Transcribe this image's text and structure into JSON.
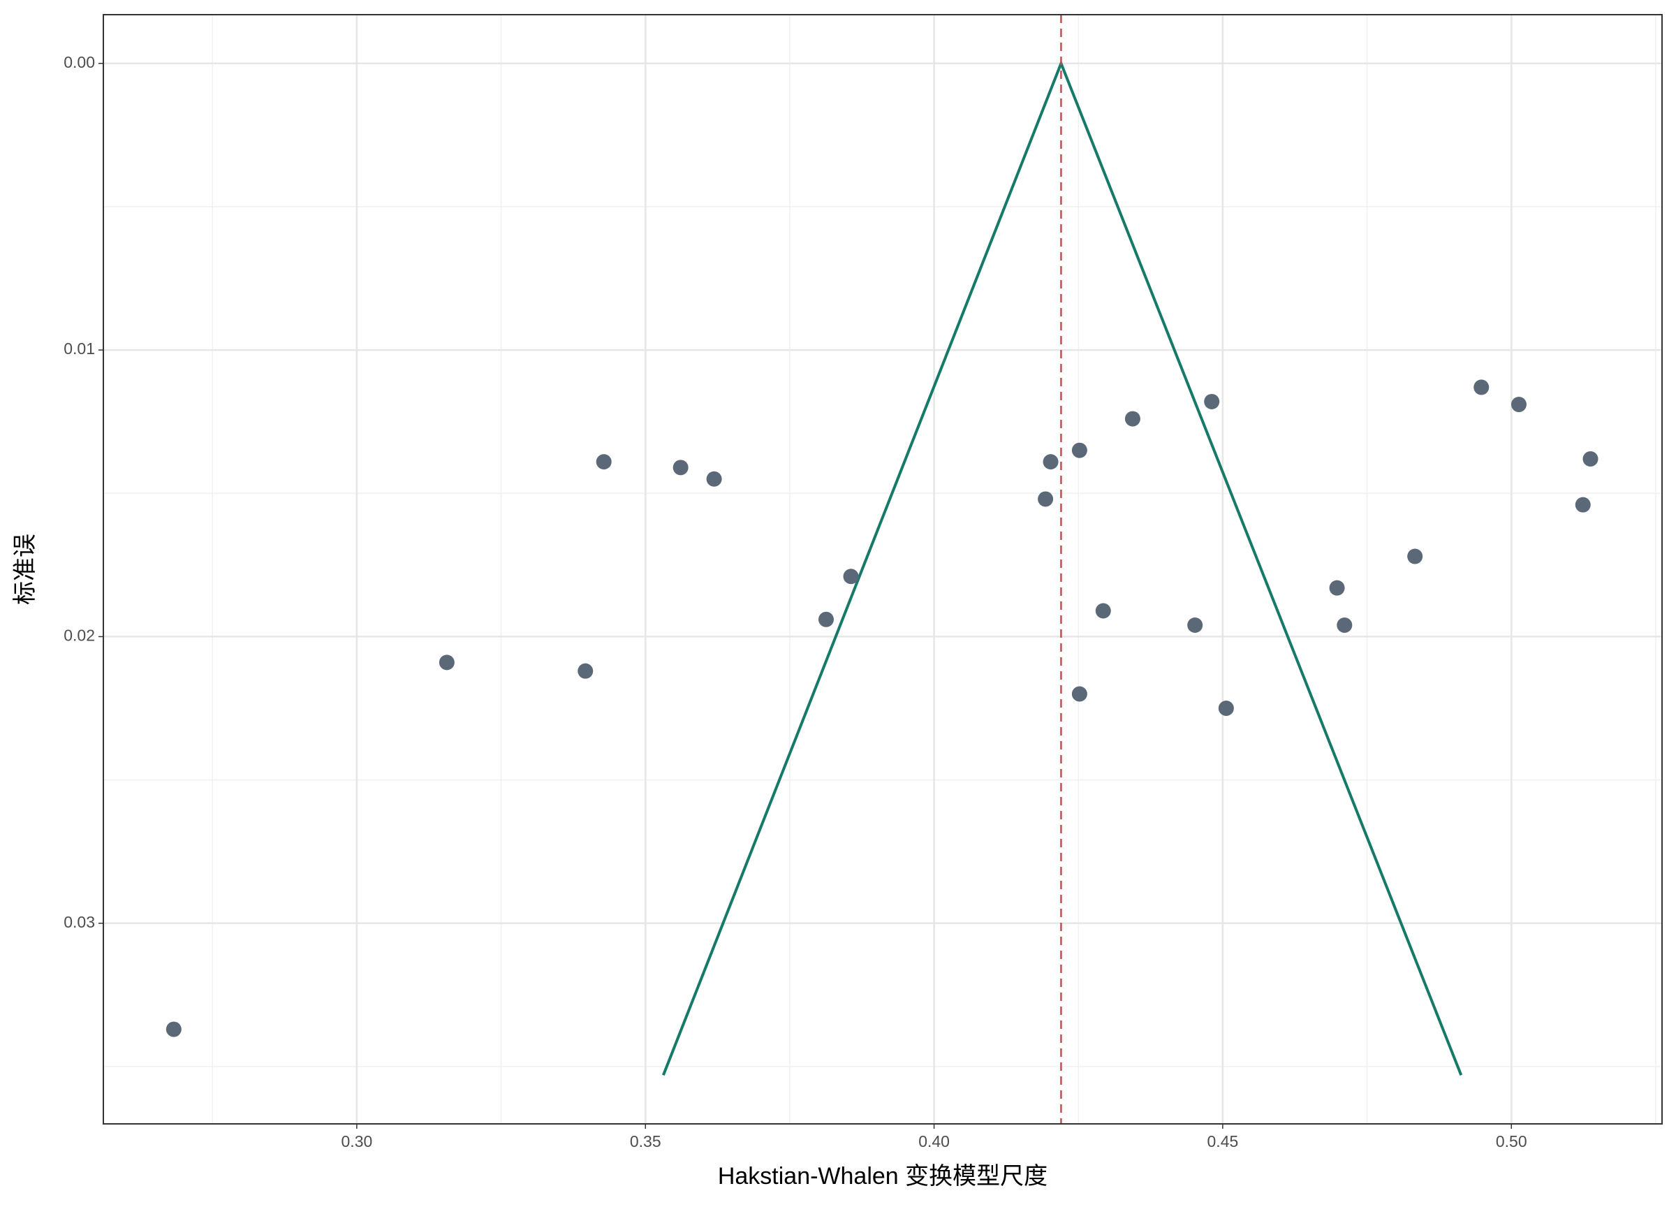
{
  "chart_data": {
    "type": "scatter",
    "xlabel": "Hakstian-Whalen 变换模型尺度",
    "ylabel": "标准误",
    "x": [
      0.2683,
      0.3156,
      0.3396,
      0.3428,
      0.3561,
      0.3619,
      0.3813,
      0.3856,
      0.4193,
      0.4202,
      0.4252,
      0.4252,
      0.4293,
      0.4344,
      0.4452,
      0.4481,
      0.4506,
      0.4698,
      0.4711,
      0.4833,
      0.4948,
      0.5013,
      0.5124,
      0.5137
    ],
    "y": [
      0.0337,
      0.0209,
      0.0212,
      0.0139,
      0.0141,
      0.0145,
      0.0194,
      0.0179,
      0.0152,
      0.0139,
      0.0135,
      0.022,
      0.0191,
      0.0124,
      0.0196,
      0.0118,
      0.0225,
      0.0183,
      0.0196,
      0.0172,
      0.0113,
      0.0119,
      0.0154,
      0.0138
    ],
    "color": "#5a6878",
    "funnel": {
      "x": [
        0.3531,
        0.422,
        0.4913
      ],
      "y": [
        0.0353,
        0,
        0.0353
      ],
      "color": "#167a68"
    },
    "reference_line": {
      "x": 0.422,
      "color": "#c0504d"
    },
    "xlim": [
      0.2561,
      0.5261
    ],
    "ylim": [
      -0.0017,
      0.037
    ],
    "y_reversed": true,
    "xticks": [
      {
        "value": 0.3,
        "label": "0.30"
      },
      {
        "value": 0.35,
        "label": "0.35"
      },
      {
        "value": 0.4,
        "label": "0.40"
      },
      {
        "value": 0.45,
        "label": "0.45"
      },
      {
        "value": 0.5,
        "label": "0.50"
      }
    ],
    "yticks": [
      {
        "value": 0,
        "label": "0.00"
      },
      {
        "value": 0.01,
        "label": "0.01"
      },
      {
        "value": 0.02,
        "label": "0.02"
      },
      {
        "value": 0.03,
        "label": "0.03"
      }
    ],
    "x_minor_grid": [
      0.275,
      0.325,
      0.375,
      0.425,
      0.475,
      0.525
    ],
    "y_minor_grid": [
      0.005,
      0.015,
      0.025,
      0.035
    ],
    "grid": true
  }
}
